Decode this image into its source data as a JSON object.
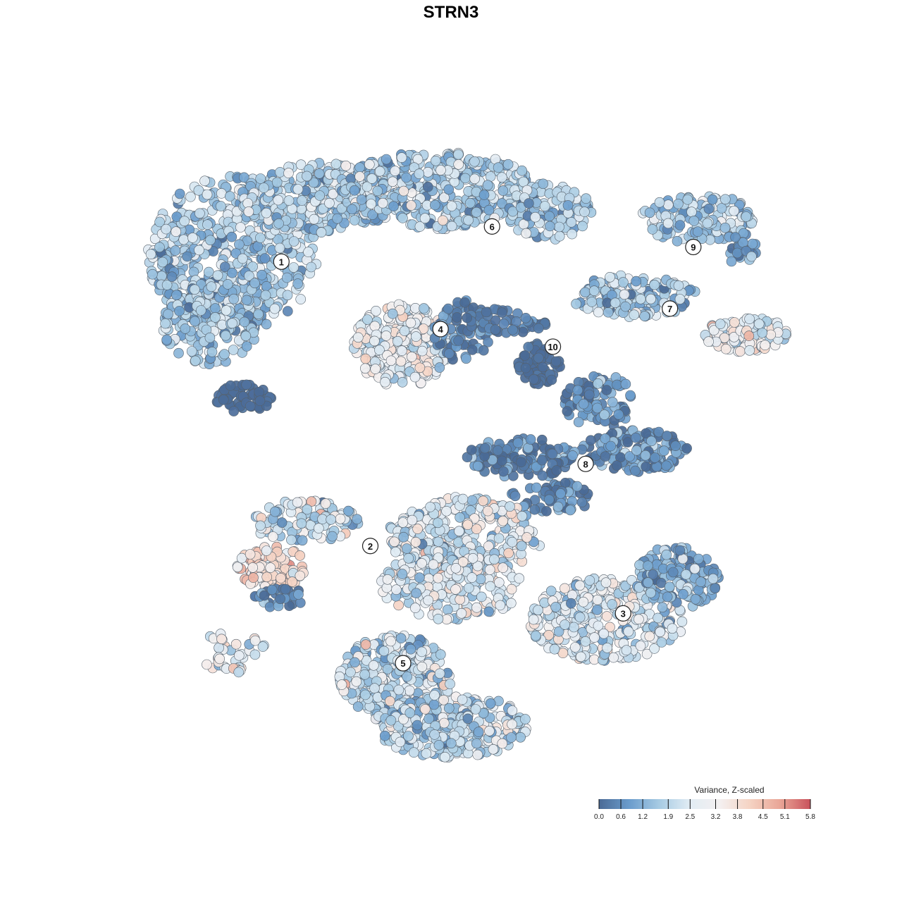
{
  "title": "STRN3",
  "chart_data": {
    "type": "scatter",
    "description_note": "",
    "clusters": [
      {
        "label": "1",
        "x": 2.0,
        "y": 7.4
      },
      {
        "label": "2",
        "x": 3.9,
        "y": -2.3
      },
      {
        "label": "3",
        "x": 9.3,
        "y": -4.6
      },
      {
        "label": "4",
        "x": 5.4,
        "y": 5.1
      },
      {
        "label": "5",
        "x": 4.6,
        "y": -6.3
      },
      {
        "label": "6",
        "x": 6.5,
        "y": 8.6
      },
      {
        "label": "7",
        "x": 10.3,
        "y": 5.8
      },
      {
        "label": "8",
        "x": 8.5,
        "y": 0.5
      },
      {
        "label": "9",
        "x": 10.8,
        "y": 7.9
      },
      {
        "label": "10",
        "x": 7.8,
        "y": 4.5
      }
    ],
    "legend": {
      "title": "Variance, Z-scaled",
      "ticks": [
        "0.0",
        "0.6",
        "1.2",
        "1.9",
        "2.5",
        "3.2",
        "3.8",
        "4.5",
        "5.1",
        "5.8"
      ],
      "min": 0.0,
      "max": 5.8,
      "colors": [
        "#4a6a96",
        "#6a9ccc",
        "#a7cbe3",
        "#e1ecf4",
        "#f4f0f0",
        "#f5d3c3",
        "#e9a596",
        "#c9525c"
      ],
      "placement": "bottom-right"
    },
    "grid": false
  }
}
